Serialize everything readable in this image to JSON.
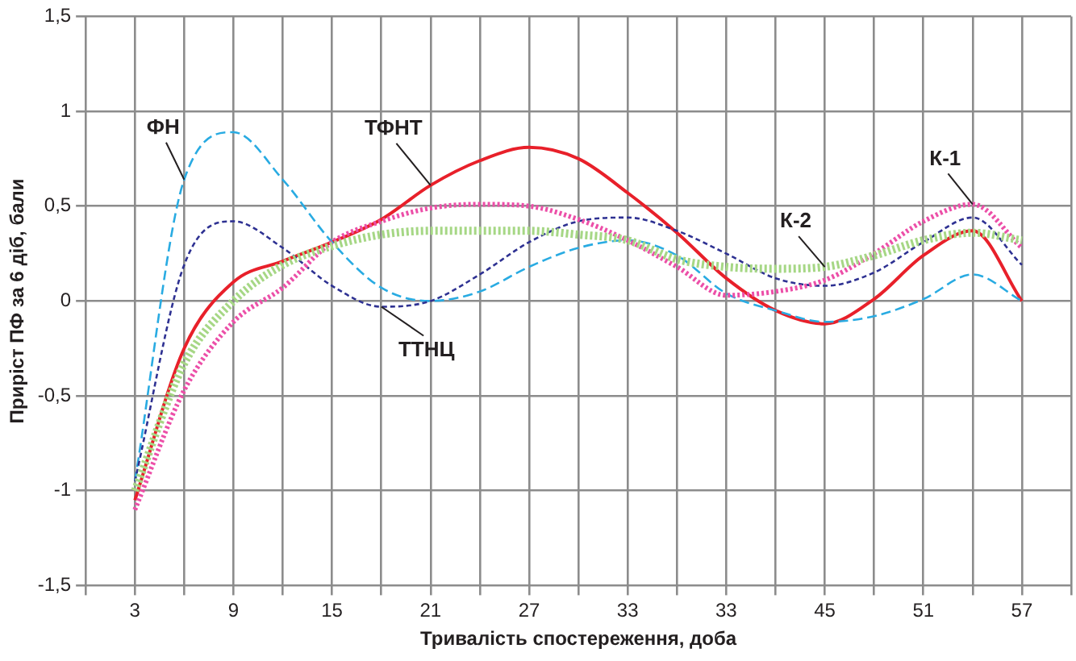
{
  "chart_data": {
    "type": "line",
    "xlabel": "Тривалість спостереження, доба",
    "ylabel": "Приріст ПФ за 6 діб, бали",
    "categories": [
      "3",
      null,
      "9",
      null,
      "15",
      null,
      "21",
      null,
      "27",
      null,
      "33",
      null,
      "33",
      null,
      "45",
      null,
      "51",
      null,
      "57"
    ],
    "series": [
      {
        "name": "ТФНТ",
        "color": "#e8202a",
        "line_style": "solid",
        "values": [
          -1.05,
          -0.25,
          0.1,
          0.21,
          0.31,
          0.43,
          0.61,
          0.74,
          0.81,
          0.75,
          0.57,
          0.36,
          0.12,
          -0.05,
          -0.12,
          0.01,
          0.24,
          0.37,
          0
        ]
      },
      {
        "name": "ФН",
        "color": "#29abe2",
        "line_style": "dashed",
        "values": [
          -0.95,
          0.64,
          0.89,
          0.64,
          0.31,
          0.07,
          0,
          0.05,
          0.18,
          0.28,
          0.32,
          0.24,
          0.04,
          -0.05,
          -0.11,
          -0.08,
          0.01,
          0.14,
          0
        ]
      },
      {
        "name": "ТТНЦ",
        "color": "#2e3192",
        "line_style": "dashed",
        "values": [
          -0.95,
          0.19,
          0.42,
          0.28,
          0.08,
          -0.03,
          0,
          0.14,
          0.31,
          0.42,
          0.44,
          0.37,
          0.25,
          0.12,
          0.08,
          0.15,
          0.31,
          0.44,
          0.19
        ]
      },
      {
        "name": "К-1",
        "color": "#ec4fa8",
        "line_style": "dotted",
        "values": [
          -1.1,
          -0.47,
          -0.11,
          0.07,
          0.31,
          0.42,
          0.49,
          0.51,
          0.5,
          0.43,
          0.32,
          0.18,
          0.03,
          0.05,
          0.11,
          0.25,
          0.42,
          0.51,
          0.28
        ]
      },
      {
        "name": "К-2",
        "color": "#a6d785",
        "line_style": "dotted",
        "values": [
          -1,
          -0.33,
          0,
          0.19,
          0.29,
          0.35,
          0.37,
          0.37,
          0.37,
          0.35,
          0.32,
          0.22,
          0.18,
          0.17,
          0.18,
          0.24,
          0.32,
          0.36,
          0.32
        ]
      }
    ],
    "ylim": [
      -1.5,
      1.5
    ],
    "yticks": [
      {
        "value": -1.5,
        "label": "-1,5"
      },
      -1,
      {
        "value": -0.5,
        "label": "-0,5"
      },
      0,
      {
        "value": 0.5,
        "label": "0,5"
      },
      1,
      {
        "value": 1.5,
        "label": "1,5"
      }
    ],
    "grid": true,
    "legend": false,
    "marker": "none"
  }
}
